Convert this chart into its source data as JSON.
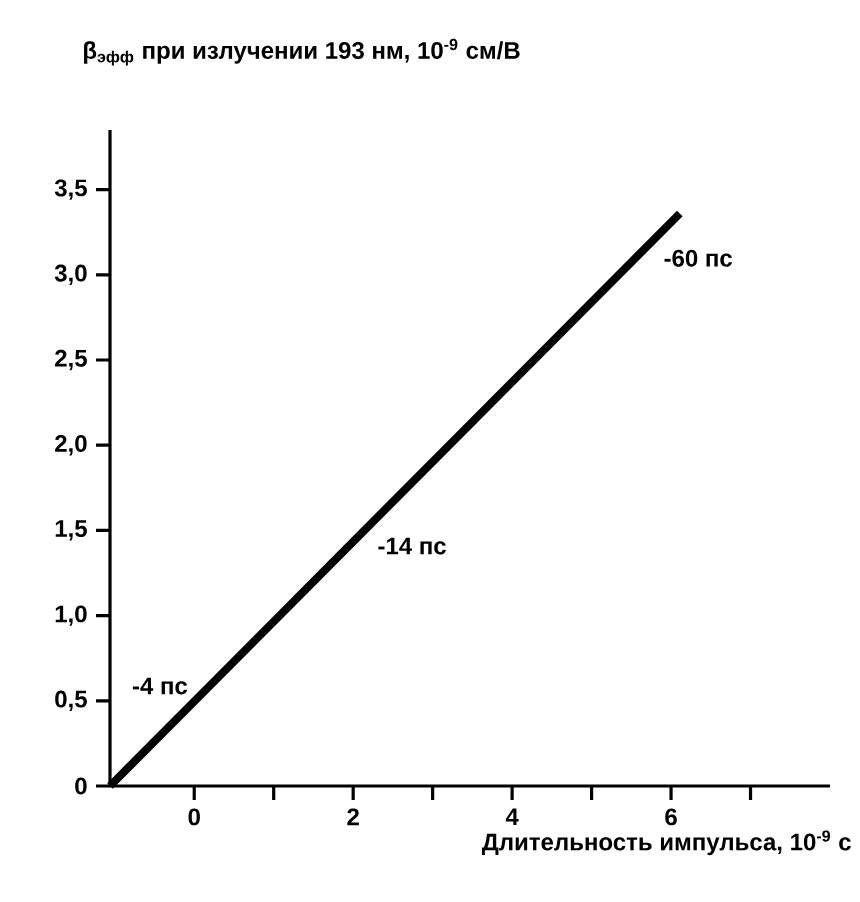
{
  "chart_data": {
    "type": "line",
    "ylabel": "β$_{эфф}$ при излучении 193 нм, 10$^{-9}$ см/В",
    "xlabel": "Длительность импульса, 10$^{-9}$ с",
    "x": [
      -1.06,
      6.11
    ],
    "values": [
      0,
      3.36
    ],
    "color": "#000000",
    "xlim": [
      -1.06,
      8.0
    ],
    "ylim": [
      0,
      3.85
    ],
    "xticks": [
      0,
      {
        "value": 1,
        "label": null
      },
      2,
      {
        "value": 3,
        "label": null
      },
      4,
      {
        "value": 5,
        "label": null
      },
      6,
      {
        "value": 7,
        "label": null
      }
    ],
    "yticks": [
      0,
      {
        "value": 0.5,
        "label": "0,5"
      },
      {
        "value": 1.0,
        "label": "1,0"
      },
      {
        "value": 1.5,
        "label": "1,5"
      },
      {
        "value": 2.0,
        "label": "2,0"
      },
      {
        "value": 2.5,
        "label": "2,5"
      },
      {
        "value": 3.0,
        "label": "3,0"
      },
      {
        "value": 3.5,
        "label": "3,5"
      }
    ],
    "annotations": [
      {
        "text": "-4 пс",
        "x": 0.0,
        "y": 0.5
      },
      {
        "text": "-14 пс",
        "x": 2.2,
        "y": 1.53
      },
      {
        "text": "-60 пс",
        "x": 5.8,
        "y": 3.22
      }
    ]
  }
}
